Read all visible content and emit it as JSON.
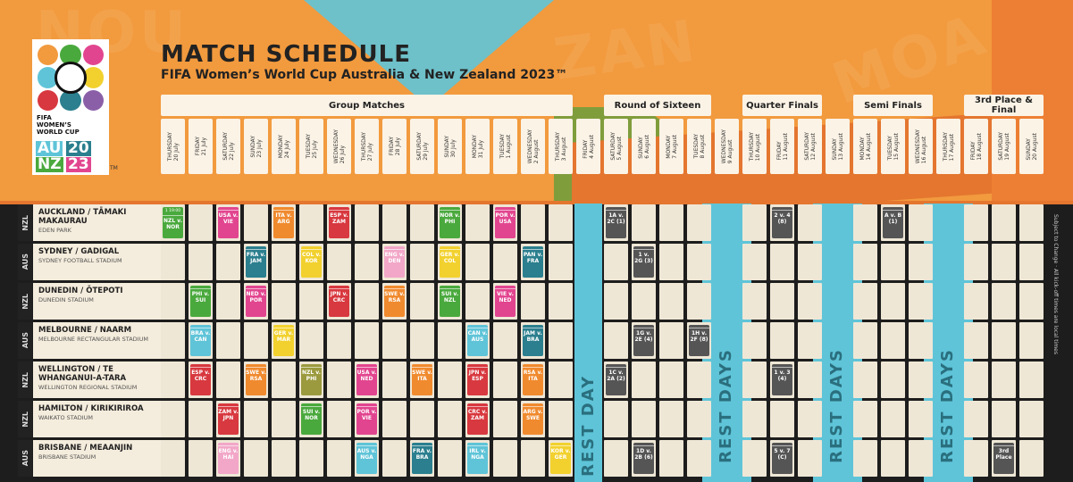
{
  "title": "MATCH SCHEDULE",
  "subtitle": "FIFA Women’s World Cup Australia & New Zealand 2023™",
  "logo": {
    "line1": "FIFA",
    "line2": "WOMEN’S",
    "line3": "WORLD CUP",
    "au": "AU",
    "nz": "NZ",
    "y1": "20",
    "y2": "23",
    "tm": "TM"
  },
  "watermark": [
    "NOU",
    "ZAN",
    "MOA"
  ],
  "phases": [
    {
      "label": "Group Matches"
    },
    {
      "label": "Round of Sixteen"
    },
    {
      "label": "Quarter Finals"
    },
    {
      "label": "Semi Finals"
    },
    {
      "label": "3rd Place & Final"
    }
  ],
  "dates": [
    "THURSDAY\n20 July",
    "FRIDAY\n21 July",
    "SATURDAY\n22 July",
    "SUNDAY\n23 July",
    "MONDAY\n24 July",
    "TUESDAY\n25 July",
    "WEDNESDAY\n26 July",
    "THURSDAY\n27 July",
    "FRIDAY\n28 July",
    "SATURDAY\n29 July",
    "SUNDAY\n30 July",
    "MONDAY\n31 July",
    "TUESDAY\n1 August",
    "WEDNESDAY\n2 August",
    "THURSDAY\n3 August",
    "FRIDAY\n4 August",
    "SATURDAY\n5 August",
    "SUNDAY\n6 August",
    "MONDAY\n7 August",
    "TUESDAY\n8 August",
    "WEDNESDAY\n9 August",
    "THURSDAY\n10 August",
    "FRIDAY\n11 August",
    "SATURDAY\n12 August",
    "SUNDAY\n13 August",
    "MONDAY\n14 August",
    "TUESDAY\n15 August",
    "WEDNESDAY\n16 August",
    "THURSDAY\n17 August",
    "FRIDAY\n18 August",
    "SATURDAY\n19 August",
    "SUNDAY\n20 August"
  ],
  "rest_labels": [
    "REST DAY",
    "REST DAYS",
    "REST DAYS",
    "REST DAYS"
  ],
  "subject_note": "Subject to Change · All kick-off times are local times",
  "colors": {
    "green": "#4aa93d",
    "pink": "#e2458f",
    "orange": "#f08a2e",
    "red": "#d8383f",
    "yellow": "#f2d12e",
    "lpink": "#f2a7c8",
    "lblue": "#5fc4d8",
    "teal": "#2b7f8e",
    "khaki": "#9b9a3e",
    "purple": "#8b5fa8",
    "dgrey": "#555555"
  },
  "venues": [
    {
      "cc": "NZL",
      "name": "AUCKLAND / TĀMAKI MAKAURAU",
      "stadium": "EDEN PARK",
      "matches": [
        {
          "col": 0,
          "num": "1 19:00",
          "teams": "NZL v. NOR",
          "c": "green"
        },
        {
          "col": 2,
          "num": "",
          "teams": "USA v. VIE",
          "c": "pink"
        },
        {
          "col": 4,
          "num": "",
          "teams": "ITA v. ARG",
          "c": "orange"
        },
        {
          "col": 6,
          "num": "",
          "teams": "ESP v. ZAM",
          "c": "red"
        },
        {
          "col": 10,
          "num": "",
          "teams": "NOR v. PHI",
          "c": "green"
        },
        {
          "col": 12,
          "num": "",
          "teams": "POR v. USA",
          "c": "pink"
        },
        {
          "col": 16,
          "num": "",
          "teams": "1A v. 2C (1)",
          "c": "dgrey"
        },
        {
          "col": 22,
          "num": "",
          "teams": "2 v. 4 (8)",
          "c": "dgrey"
        },
        {
          "col": 26,
          "num": "",
          "teams": "A v. B (1)",
          "c": "dgrey"
        }
      ]
    },
    {
      "cc": "AUS",
      "name": "SYDNEY / GADIGAL",
      "stadium": "SYDNEY FOOTBALL STADIUM",
      "matches": [
        {
          "col": 3,
          "num": "",
          "teams": "FRA v. JAM",
          "c": "teal"
        },
        {
          "col": 5,
          "num": "",
          "teams": "COL v. KOR",
          "c": "yellow"
        },
        {
          "col": 8,
          "num": "",
          "teams": "ENG v. DEN",
          "c": "lpink"
        },
        {
          "col": 10,
          "num": "",
          "teams": "GER v. COL",
          "c": "yellow"
        },
        {
          "col": 13,
          "num": "",
          "teams": "PAN v. FRA",
          "c": "teal"
        },
        {
          "col": 17,
          "num": "",
          "teams": "1 v. 2G (3)",
          "c": "dgrey"
        }
      ]
    },
    {
      "cc": "NZL",
      "name": "DUNEDIN / ŌTEPOTI",
      "stadium": "DUNEDIN STADIUM",
      "matches": [
        {
          "col": 1,
          "num": "",
          "teams": "PHI v. SUI",
          "c": "green"
        },
        {
          "col": 3,
          "num": "",
          "teams": "NED v. POR",
          "c": "pink"
        },
        {
          "col": 6,
          "num": "",
          "teams": "JPN v. CRC",
          "c": "red"
        },
        {
          "col": 8,
          "num": "",
          "teams": "SWE v. RSA",
          "c": "orange"
        },
        {
          "col": 10,
          "num": "",
          "teams": "SUI v. NZL",
          "c": "green"
        },
        {
          "col": 12,
          "num": "",
          "teams": "VIE v. NED",
          "c": "pink"
        }
      ]
    },
    {
      "cc": "AUS",
      "name": "MELBOURNE / NAARM",
      "stadium": "MELBOURNE RECTANGULAR STADIUM",
      "matches": [
        {
          "col": 1,
          "num": "",
          "teams": "BRA v. CAN",
          "c": "lblue"
        },
        {
          "col": 4,
          "num": "",
          "teams": "GER v. MAR",
          "c": "yellow"
        },
        {
          "col": 11,
          "num": "",
          "teams": "CAN v. AUS",
          "c": "lblue"
        },
        {
          "col": 13,
          "num": "",
          "teams": "JAM v. BRA",
          "c": "teal"
        },
        {
          "col": 17,
          "num": "",
          "teams": "1G v. 2E (4)",
          "c": "dgrey"
        },
        {
          "col": 19,
          "num": "",
          "teams": "1H v. 2F (8)",
          "c": "dgrey"
        }
      ]
    },
    {
      "cc": "NZL",
      "name": "WELLINGTON / TE WHANGANUI-A-TARA",
      "stadium": "WELLINGTON REGIONAL STADIUM",
      "matches": [
        {
          "col": 1,
          "num": "",
          "teams": "ESP v. CRC",
          "c": "red"
        },
        {
          "col": 3,
          "num": "",
          "teams": "SWE v. RSA",
          "c": "orange"
        },
        {
          "col": 5,
          "num": "",
          "teams": "NZL v. PHI",
          "c": "khaki"
        },
        {
          "col": 7,
          "num": "",
          "teams": "USA v. NED",
          "c": "pink"
        },
        {
          "col": 9,
          "num": "",
          "teams": "SWE v. ITA",
          "c": "orange"
        },
        {
          "col": 11,
          "num": "",
          "teams": "JPN v. ESP",
          "c": "red"
        },
        {
          "col": 13,
          "num": "",
          "teams": "RSA v. ITA",
          "c": "orange"
        },
        {
          "col": 16,
          "num": "",
          "teams": "1C v. 2A (2)",
          "c": "dgrey"
        },
        {
          "col": 22,
          "num": "",
          "teams": "1 v. 3 (4)",
          "c": "dgrey"
        }
      ]
    },
    {
      "cc": "NZL",
      "name": "HAMILTON / KIRIKIRIROA",
      "stadium": "WAIKATO STADIUM",
      "matches": [
        {
          "col": 2,
          "num": "",
          "teams": "ZAM v. JPN",
          "c": "red"
        },
        {
          "col": 5,
          "num": "",
          "teams": "SUI v. NOR",
          "c": "green"
        },
        {
          "col": 7,
          "num": "",
          "teams": "POR v. VIE",
          "c": "pink"
        },
        {
          "col": 11,
          "num": "",
          "teams": "CRC v. ZAM",
          "c": "red"
        },
        {
          "col": 13,
          "num": "",
          "teams": "ARG v. SWE",
          "c": "orange"
        }
      ]
    },
    {
      "cc": "AUS",
      "name": "BRISBANE / MEAANJIN",
      "stadium": "BRISBANE STADIUM",
      "matches": [
        {
          "col": 2,
          "num": "",
          "teams": "ENG v. HAI",
          "c": "lpink"
        },
        {
          "col": 7,
          "num": "",
          "teams": "AUS v. NGA",
          "c": "lblue"
        },
        {
          "col": 9,
          "num": "",
          "teams": "FRA v. BRA",
          "c": "teal"
        },
        {
          "col": 11,
          "num": "",
          "teams": "IRL v. NGA",
          "c": "lblue"
        },
        {
          "col": 14,
          "num": "",
          "teams": "KOR v. GER",
          "c": "yellow"
        },
        {
          "col": 17,
          "num": "",
          "teams": "1D v. 2B (6)",
          "c": "dgrey"
        },
        {
          "col": 22,
          "num": "",
          "teams": "5 v. 7 (C)",
          "c": "dgrey"
        },
        {
          "col": 30,
          "num": "",
          "teams": "3rd Place",
          "c": "dgrey"
        }
      ]
    }
  ]
}
